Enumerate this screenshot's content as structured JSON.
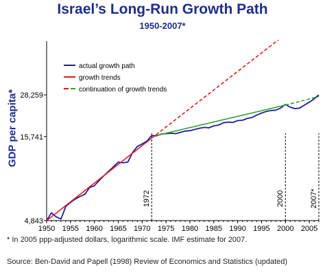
{
  "chart_data": {
    "type": "line",
    "title": "Israel’s Long-Run Growth Path",
    "subtitle": "1950-2007*",
    "ylabel": "GDP per capita*",
    "xlim": [
      1950,
      2007
    ],
    "ylim": [
      4843,
      60000
    ],
    "y_scale": "log",
    "x_ticks": [
      1950,
      1955,
      1960,
      1965,
      1970,
      1975,
      1980,
      1985,
      1990,
      1995,
      2000,
      2005
    ],
    "y_ticks": [
      {
        "value": 4843,
        "label": "4,843"
      },
      {
        "value": 15741,
        "label": "15,741"
      },
      {
        "value": 28259,
        "label": "28,259"
      }
    ],
    "markers": [
      {
        "year": 1972,
        "label": "1972"
      },
      {
        "year": 2000,
        "label": "2000"
      },
      {
        "year": 2007,
        "label": "2007*"
      }
    ],
    "legend": {
      "placement": "top-left",
      "entries": [
        "actual growth path",
        "growth trends",
        "continuation of growth trends"
      ]
    },
    "series": [
      {
        "name": "actual growth path",
        "color": "#1c1c9e",
        "x": [
          1950,
          1951,
          1952,
          1953,
          1954,
          1955,
          1956,
          1957,
          1958,
          1959,
          1960,
          1961,
          1962,
          1963,
          1964,
          1965,
          1966,
          1967,
          1968,
          1969,
          1970,
          1971,
          1972,
          1973,
          1974,
          1975,
          1976,
          1977,
          1978,
          1979,
          1980,
          1981,
          1982,
          1983,
          1984,
          1985,
          1986,
          1987,
          1988,
          1989,
          1990,
          1991,
          1992,
          1993,
          1994,
          1995,
          1996,
          1997,
          1998,
          1999,
          2000,
          2001,
          2002,
          2003,
          2004,
          2005,
          2006,
          2007
        ],
        "y": [
          4843,
          5400,
          5100,
          4950,
          5900,
          6250,
          6550,
          6800,
          7000,
          7700,
          7900,
          8500,
          9100,
          9700,
          10300,
          11000,
          10900,
          11000,
          12600,
          13700,
          14200,
          14800,
          16000,
          15900,
          16300,
          16400,
          16500,
          16400,
          16700,
          17000,
          17100,
          17400,
          17700,
          17900,
          17800,
          18300,
          18500,
          19100,
          19300,
          19200,
          19700,
          19800,
          20300,
          20600,
          21300,
          21900,
          22400,
          22700,
          22800,
          23500,
          24700,
          23800,
          23300,
          23500,
          24500,
          25500,
          26700,
          28259
        ]
      },
      {
        "name": "growth trends",
        "color": "#e31a1c",
        "style": "solid",
        "x": [
          1950,
          1972
        ],
        "y": [
          4843,
          15400
        ]
      },
      {
        "name": "continuation of growth trends",
        "color": "#e31a1c",
        "style": "dashed",
        "x": [
          1972,
          2007
        ],
        "y": [
          15400,
          95000
        ]
      },
      {
        "name": "growth trends",
        "color": "#2ca02c",
        "style": "solid",
        "x": [
          1973,
          2000
        ],
        "y": [
          16000,
          24500
        ]
      },
      {
        "name": "continuation of growth trends",
        "color": "#2ca02c",
        "style": "dashed",
        "x": [
          2000,
          2007
        ],
        "y": [
          24500,
          27600
        ]
      }
    ]
  },
  "footnotes": {
    "note": "* In 2005 ppp-adjusted dollars, logarithmic scale.  IMF estimate for 2007.",
    "source": "Source: Ben-David and Papell (1998) Review of Economics and Statistics (updated)"
  }
}
